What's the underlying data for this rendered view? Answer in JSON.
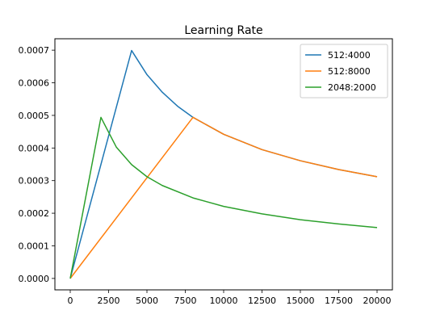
{
  "chart_data": {
    "type": "line",
    "title": "Learning Rate",
    "xlabel": "",
    "ylabel": "",
    "xlim": [
      -1000,
      21000
    ],
    "ylim": [
      -3.5e-05,
      0.000735
    ],
    "xticks": [
      0,
      2500,
      5000,
      7500,
      10000,
      12500,
      15000,
      17500,
      20000
    ],
    "xtick_labels": [
      "0",
      "2500",
      "5000",
      "7500",
      "10000",
      "12500",
      "15000",
      "17500",
      "20000"
    ],
    "yticks": [
      0,
      0.0001,
      0.0002,
      0.0003,
      0.0004,
      0.0005,
      0.0006,
      0.0007
    ],
    "ytick_labels": [
      "0.0000",
      "0.0001",
      "0.0002",
      "0.0003",
      "0.0004",
      "0.0005",
      "0.0006",
      "0.0007"
    ],
    "grid": false,
    "legend_position": "top-right",
    "series": [
      {
        "name": "512:4000",
        "color": "#1f77b4",
        "x": [
          0,
          4000,
          5000,
          6000,
          7000,
          8000,
          10000,
          12500,
          15000,
          17500,
          20000
        ],
        "y": [
          0,
          0.000699,
          0.000625,
          0.000571,
          0.000528,
          0.000494,
          0.000442,
          0.000395,
          0.000361,
          0.000334,
          0.000312
        ]
      },
      {
        "name": "512:8000",
        "color": "#ff7f0e",
        "x": [
          0,
          8000,
          10000,
          12500,
          15000,
          17500,
          20000
        ],
        "y": [
          0,
          0.000494,
          0.000442,
          0.000395,
          0.000361,
          0.000334,
          0.000312
        ]
      },
      {
        "name": "2048:2000",
        "color": "#2ca02c",
        "x": [
          0,
          2000,
          3000,
          4000,
          5000,
          6000,
          8000,
          10000,
          12500,
          15000,
          17500,
          20000
        ],
        "y": [
          0,
          0.000494,
          0.000403,
          0.000349,
          0.000312,
          0.000285,
          0.000247,
          0.000221,
          0.000198,
          0.00018,
          0.000167,
          0.000156
        ]
      }
    ]
  }
}
